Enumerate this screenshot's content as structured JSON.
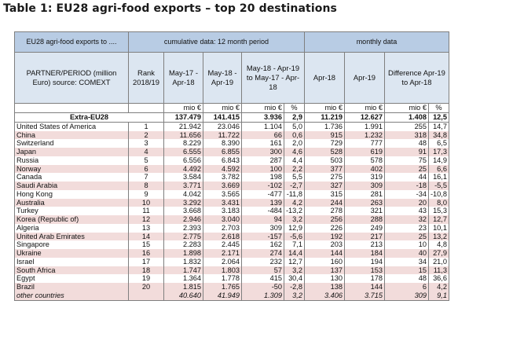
{
  "title": "Table 1: EU28 agri-food exports – top 20 destinations",
  "header": {
    "corner": "EU28 agri-food exports to ....",
    "cumulative": "cumulative data: 12 month period",
    "monthly": "monthly data",
    "partner": "PARTNER/PERIOD (million Euro) source: COMEXT",
    "rank": "Rank 2018/19",
    "c1": "May-17 - Apr-18",
    "c2": "May-18 - Apr-19",
    "c3": "May-18 - Apr-19 to May-17 - Apr-18",
    "m1": "Apr-18",
    "m2": "Apr-19",
    "diff": "Difference Apr-19 to Apr-18"
  },
  "units": [
    "mio €",
    "mio €",
    "mio €",
    "%",
    "mio €",
    "mio €",
    "mio €",
    "%"
  ],
  "extra": {
    "name": "Extra-EU28",
    "values": [
      "137.479",
      "141.415",
      "3.936",
      "2,9",
      "11.219",
      "12.627",
      "1.408",
      "12,5"
    ]
  },
  "rows": [
    {
      "name": "United States of America",
      "rank": "1",
      "values": [
        "21.942",
        "23.046",
        "1.104",
        "5,0",
        "1.736",
        "1.991",
        "255",
        "14,7"
      ]
    },
    {
      "name": "China",
      "rank": "2",
      "values": [
        "11.656",
        "11.722",
        "66",
        "0,6",
        "915",
        "1.232",
        "318",
        "34,8"
      ]
    },
    {
      "name": "Switzerland",
      "rank": "3",
      "values": [
        "8.229",
        "8.390",
        "161",
        "2,0",
        "729",
        "777",
        "48",
        "6,5"
      ]
    },
    {
      "name": "Japan",
      "rank": "4",
      "values": [
        "6.555",
        "6.855",
        "300",
        "4,6",
        "528",
        "619",
        "91",
        "17,3"
      ]
    },
    {
      "name": "Russia",
      "rank": "5",
      "values": [
        "6.556",
        "6.843",
        "287",
        "4,4",
        "503",
        "578",
        "75",
        "14,9"
      ]
    },
    {
      "name": "Norway",
      "rank": "6",
      "values": [
        "4.492",
        "4.592",
        "100",
        "2,2",
        "377",
        "402",
        "25",
        "6,6"
      ]
    },
    {
      "name": "Canada",
      "rank": "7",
      "values": [
        "3.584",
        "3.782",
        "198",
        "5,5",
        "275",
        "319",
        "44",
        "16,1"
      ]
    },
    {
      "name": "Saudi Arabia",
      "rank": "8",
      "values": [
        "3.771",
        "3.669",
        "-102",
        "-2,7",
        "327",
        "309",
        "-18",
        "-5,5"
      ]
    },
    {
      "name": "Hong Kong",
      "rank": "9",
      "values": [
        "4.042",
        "3.565",
        "-477",
        "-11,8",
        "315",
        "281",
        "-34",
        "-10,8"
      ]
    },
    {
      "name": "Australia",
      "rank": "10",
      "values": [
        "3.292",
        "3.431",
        "139",
        "4,2",
        "244",
        "263",
        "20",
        "8,0"
      ]
    },
    {
      "name": "Turkey",
      "rank": "11",
      "values": [
        "3.668",
        "3.183",
        "-484",
        "-13,2",
        "278",
        "321",
        "43",
        "15,3"
      ]
    },
    {
      "name": "Korea (Republic of)",
      "rank": "12",
      "values": [
        "2.946",
        "3.040",
        "94",
        "3,2",
        "256",
        "288",
        "32",
        "12,7"
      ]
    },
    {
      "name": "Algeria",
      "rank": "13",
      "values": [
        "2.393",
        "2.703",
        "309",
        "12,9",
        "226",
        "249",
        "23",
        "10,1"
      ]
    },
    {
      "name": "United Arab Emirates",
      "rank": "14",
      "values": [
        "2.775",
        "2.618",
        "-157",
        "-5,6",
        "192",
        "217",
        "25",
        "13,2"
      ]
    },
    {
      "name": "Singapore",
      "rank": "15",
      "values": [
        "2.283",
        "2.445",
        "162",
        "7,1",
        "203",
        "213",
        "10",
        "4,8"
      ]
    },
    {
      "name": "Ukraine",
      "rank": "16",
      "values": [
        "1.898",
        "2.171",
        "274",
        "14,4",
        "144",
        "184",
        "40",
        "27,9"
      ]
    },
    {
      "name": "Israel",
      "rank": "17",
      "values": [
        "1.832",
        "2.064",
        "232",
        "12,7",
        "160",
        "194",
        "34",
        "21,0"
      ]
    },
    {
      "name": "South Africa",
      "rank": "18",
      "values": [
        "1.747",
        "1.803",
        "57",
        "3,2",
        "137",
        "153",
        "15",
        "11,3"
      ]
    },
    {
      "name": "Egypt",
      "rank": "19",
      "values": [
        "1.364",
        "1.778",
        "415",
        "30,4",
        "130",
        "178",
        "48",
        "36,6"
      ]
    },
    {
      "name": "Brazil",
      "rank": "20",
      "values": [
        "1.815",
        "1.765",
        "-50",
        "-2,8",
        "138",
        "144",
        "6",
        "4,2"
      ]
    }
  ],
  "other": {
    "name": "other countries",
    "values": [
      "40.640",
      "41.949",
      "1.309",
      "3,2",
      "3.406",
      "3.715",
      "309",
      "9,1"
    ]
  }
}
